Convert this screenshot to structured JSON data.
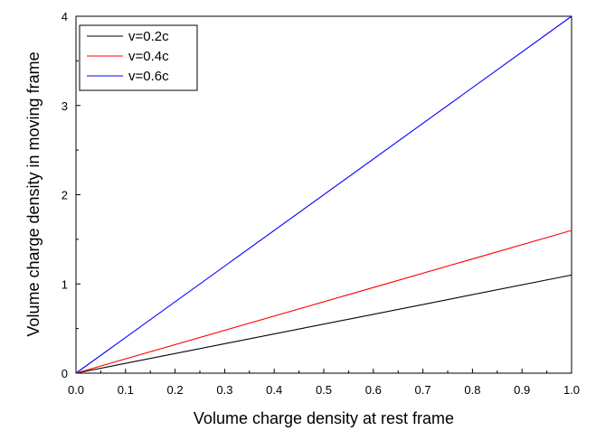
{
  "chart_data": {
    "type": "line",
    "title": "",
    "xlabel": "Volume charge density at rest frame",
    "ylabel": "Volume charge density in moving frame",
    "xlim": [
      0.0,
      1.0
    ],
    "ylim": [
      0,
      4
    ],
    "xticks": [
      "0.0",
      "0.1",
      "0.2",
      "0.3",
      "0.4",
      "0.5",
      "0.6",
      "0.7",
      "0.8",
      "0.9",
      "1.0"
    ],
    "yticks": [
      "0",
      "1",
      "2",
      "3",
      "4"
    ],
    "grid": false,
    "legend_position": "top-left",
    "series": [
      {
        "name": "v=0.2c",
        "color": "#000000",
        "x": [
          0.0,
          1.0
        ],
        "y": [
          0.0,
          1.1
        ]
      },
      {
        "name": "v=0.4c",
        "color": "#ff0000",
        "x": [
          0.0,
          1.0
        ],
        "y": [
          0.0,
          1.6
        ]
      },
      {
        "name": "v=0.6c",
        "color": "#0000ff",
        "x": [
          0.0,
          1.0
        ],
        "y": [
          0.0,
          4.0
        ]
      }
    ]
  }
}
